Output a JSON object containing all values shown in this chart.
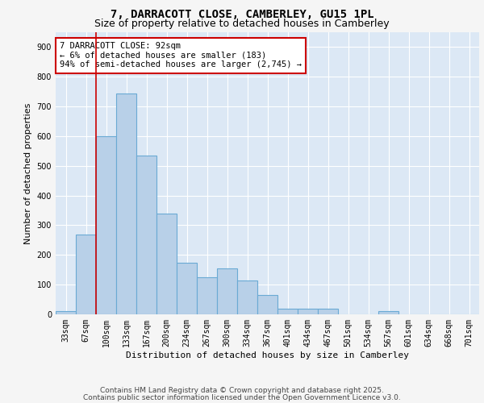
{
  "title_line1": "7, DARRACOTT CLOSE, CAMBERLEY, GU15 1PL",
  "title_line2": "Size of property relative to detached houses in Camberley",
  "xlabel": "Distribution of detached houses by size in Camberley",
  "ylabel": "Number of detached properties",
  "categories": [
    "33sqm",
    "67sqm",
    "100sqm",
    "133sqm",
    "167sqm",
    "200sqm",
    "234sqm",
    "267sqm",
    "300sqm",
    "334sqm",
    "367sqm",
    "401sqm",
    "434sqm",
    "467sqm",
    "501sqm",
    "534sqm",
    "567sqm",
    "601sqm",
    "634sqm",
    "668sqm",
    "701sqm"
  ],
  "values": [
    12,
    270,
    600,
    745,
    535,
    340,
    175,
    125,
    155,
    115,
    65,
    20,
    20,
    18,
    0,
    0,
    10,
    0,
    0,
    0,
    0
  ],
  "bar_color": "#b8d0e8",
  "bar_edge_color": "#6aaad4",
  "red_line_x": 1.5,
  "annotation_text": "7 DARRACOTT CLOSE: 92sqm\n← 6% of detached houses are smaller (183)\n94% of semi-detached houses are larger (2,745) →",
  "annotation_box_color": "#ffffff",
  "annotation_box_edge_color": "#cc0000",
  "ylim": [
    0,
    950
  ],
  "yticks": [
    0,
    100,
    200,
    300,
    400,
    500,
    600,
    700,
    800,
    900
  ],
  "background_color": "#dce8f5",
  "grid_color": "#ffffff",
  "fig_facecolor": "#f5f5f5",
  "footer_line1": "Contains HM Land Registry data © Crown copyright and database right 2025.",
  "footer_line2": "Contains public sector information licensed under the Open Government Licence v3.0.",
  "title_fontsize": 10,
  "subtitle_fontsize": 9,
  "tick_fontsize": 7,
  "xlabel_fontsize": 8,
  "ylabel_fontsize": 8,
  "annotation_fontsize": 7.5,
  "footer_fontsize": 6.5
}
